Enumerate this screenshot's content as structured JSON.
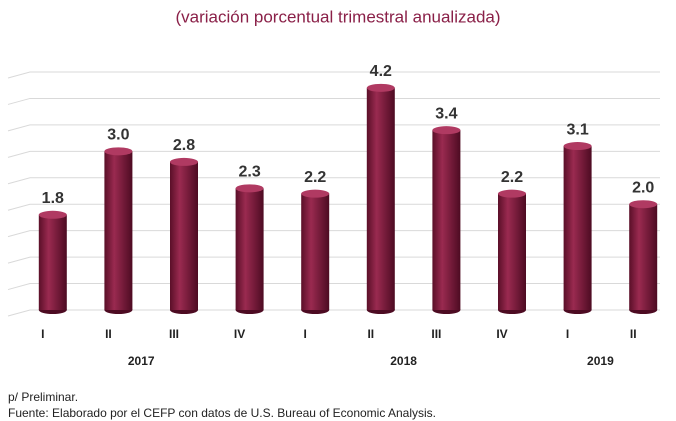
{
  "chart_data": {
    "type": "bar",
    "title": "(variación porcentual trimestral anualizada)",
    "categories": [
      "I",
      "II",
      "III",
      "IV",
      "I",
      "II",
      "III",
      "IV",
      "I",
      "II"
    ],
    "values": [
      1.8,
      3.0,
      2.8,
      2.3,
      2.2,
      4.2,
      3.4,
      2.2,
      3.1,
      2.0
    ],
    "value_labels": [
      "1.8",
      "3.0",
      "2.8",
      "2.3",
      "2.2",
      "4.2",
      "3.4",
      "2.2",
      "3.1",
      "2.0"
    ],
    "groups": [
      {
        "label": "2017",
        "start": 0,
        "end": 3
      },
      {
        "label": "2018",
        "start": 4,
        "end": 7
      },
      {
        "label": "2019",
        "start": 8,
        "end": 9
      }
    ],
    "color": "#7d1c3c",
    "ylim": [
      0,
      4.5
    ],
    "yticks": [
      0,
      0.5,
      1,
      1.5,
      2,
      2.5,
      3,
      3.5,
      4,
      4.5
    ],
    "grid": true,
    "notes": [
      "p/ Preliminar.",
      "Fuente: Elaborado por el CEFP con datos de U.S. Bureau of Economic Analysis."
    ]
  }
}
